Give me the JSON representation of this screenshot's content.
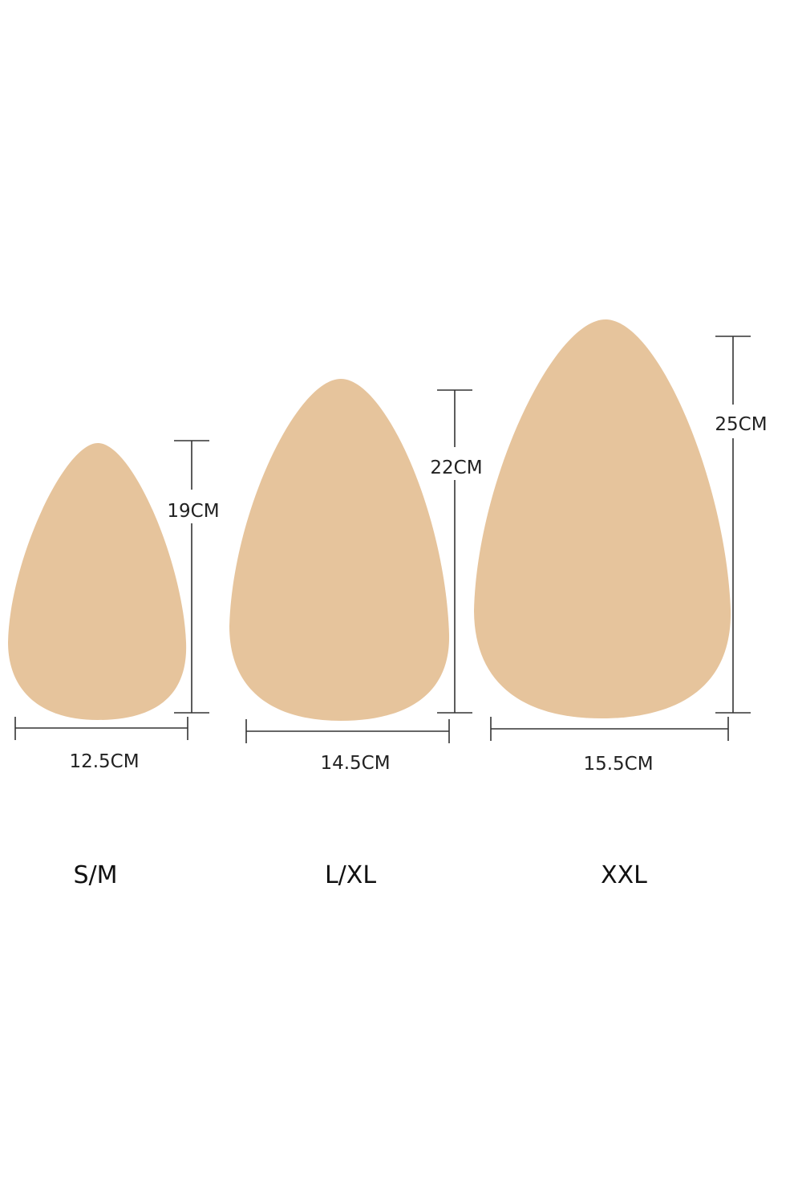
{
  "colors": {
    "pad": "#e6c49c",
    "line": "#333333",
    "text": "#222222"
  },
  "items": [
    {
      "size": "S/M",
      "width": "12.5CM",
      "height": "19CM"
    },
    {
      "size": "L/XL",
      "width": "14.5CM",
      "height": "22CM"
    },
    {
      "size": "XXL",
      "width": "15.5CM",
      "height": "25CM"
    }
  ]
}
